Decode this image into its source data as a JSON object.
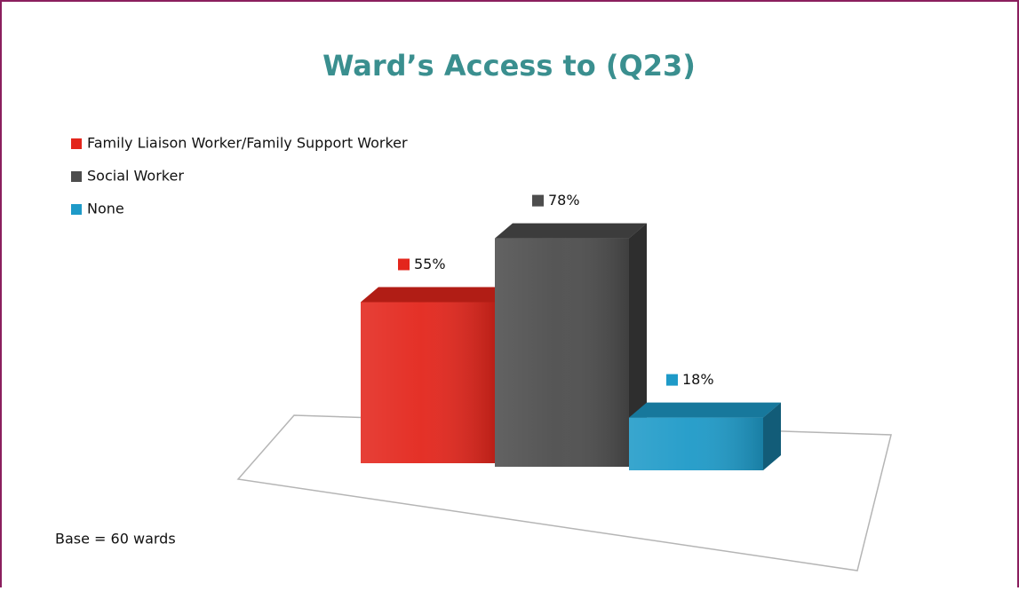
{
  "chart_data": {
    "type": "bar3d",
    "title": "Ward’s Access to (Q23)",
    "series": [
      {
        "name": "Family Liaison Worker/Family Support Worker",
        "color": "#e3261c",
        "values": [
          55
        ],
        "value_labels": [
          "55%"
        ]
      },
      {
        "name": "Social Worker",
        "color": "#4d4d4d",
        "values": [
          78
        ],
        "value_labels": [
          "78%"
        ]
      },
      {
        "name": "None",
        "color": "#1e9ac8",
        "values": [
          18
        ],
        "value_labels": [
          "18%"
        ]
      }
    ],
    "legend": "top-left",
    "note": "Base = 60 wards"
  }
}
